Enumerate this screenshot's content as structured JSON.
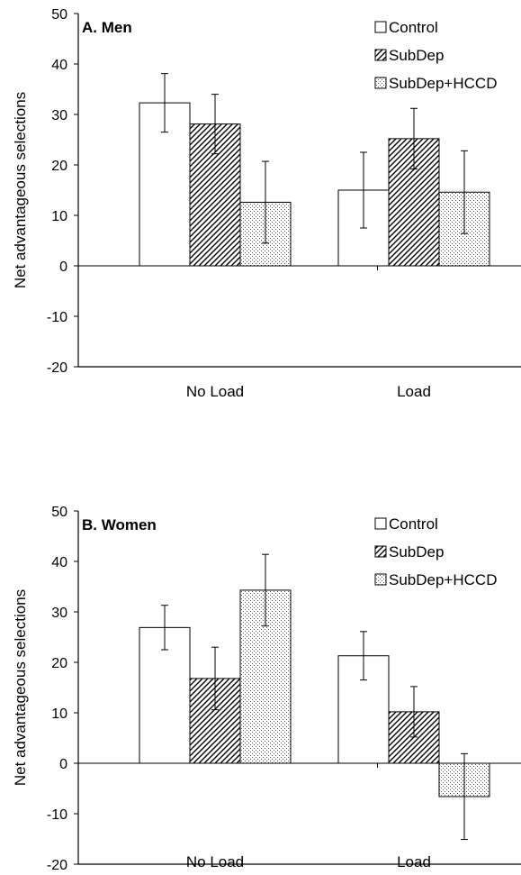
{
  "chart_data": [
    {
      "type": "bar",
      "title": "A. Men",
      "ylabel": "Net advantageous selections",
      "xlabel": "",
      "ylim": [
        -20,
        50
      ],
      "yticks": [
        50,
        40,
        30,
        20,
        10,
        0,
        -10,
        -20
      ],
      "yticklabels": [
        "50",
        "40",
        "30",
        "20",
        "10",
        "0",
        "-10",
        "-20"
      ],
      "categories": [
        "No Load",
        "Load"
      ],
      "error_bars": true,
      "legend_position": "top-right",
      "series": [
        {
          "name": "Control",
          "pattern": "white",
          "values": [
            32.3,
            15.0
          ],
          "errors": [
            5.8,
            7.5
          ]
        },
        {
          "name": "SubDep",
          "pattern": "diagonal",
          "values": [
            28.1,
            25.2
          ],
          "errors": [
            5.9,
            6.0
          ]
        },
        {
          "name": "SubDep+HCCD",
          "pattern": "dots",
          "values": [
            12.6,
            14.6
          ],
          "errors": [
            8.1,
            8.2
          ]
        }
      ]
    },
    {
      "type": "bar",
      "title": "B. Women",
      "ylabel": "Net advantageous selections",
      "xlabel": "",
      "ylim": [
        -20,
        50
      ],
      "yticks": [
        50,
        40,
        30,
        20,
        10,
        0,
        -10,
        -20
      ],
      "yticklabels": [
        "50",
        "40",
        "30",
        "20",
        "10",
        "0",
        "-10",
        "-20"
      ],
      "categories": [
        "No Load",
        "Load"
      ],
      "error_bars": true,
      "legend_position": "top-right",
      "series": [
        {
          "name": "Control",
          "pattern": "white",
          "values": [
            26.9,
            21.3
          ],
          "errors": [
            4.4,
            4.8
          ]
        },
        {
          "name": "SubDep",
          "pattern": "diagonal",
          "values": [
            16.8,
            10.2
          ],
          "errors": [
            6.2,
            5.0
          ]
        },
        {
          "name": "SubDep+HCCD",
          "pattern": "dots",
          "values": [
            34.3,
            -6.6
          ],
          "errors": [
            7.1,
            8.5
          ]
        }
      ]
    }
  ]
}
